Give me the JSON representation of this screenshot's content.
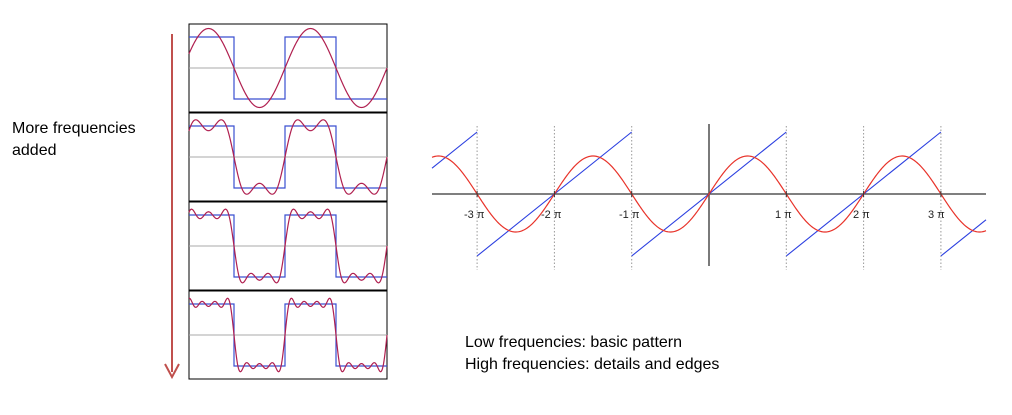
{
  "left_caption": {
    "line1": "More frequencies",
    "line2": "added"
  },
  "bottom_caption": {
    "line1": "Low frequencies: basic pattern",
    "line2": "High frequencies: details and edges"
  },
  "colors": {
    "square_wave": "#3a4fd0",
    "fourier_approx": "#b02050",
    "arrow": "#c0504d",
    "sine": "#e8332a",
    "sawtooth": "#2b3fe0",
    "axis": "#333333",
    "gridline": "#999999"
  },
  "panels": [
    {
      "label": "",
      "harmonics": 1
    },
    {
      "label": "",
      "harmonics": 2
    },
    {
      "label": "",
      "harmonics": 3
    },
    {
      "label": "",
      "harmonics": 4
    }
  ],
  "right_plot": {
    "tick_labels": [
      "-3 π",
      "-2 π",
      "-1 π",
      "1 π",
      "2 π",
      "3 π"
    ]
  }
}
